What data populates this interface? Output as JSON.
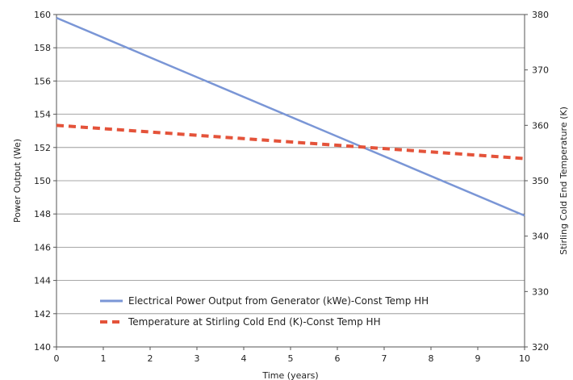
{
  "chart_data": {
    "type": "line",
    "title": "",
    "xlabel": "Time (years)",
    "ylabel": "Power Output (We)",
    "y2label": "Stirling Cold End Temperature (K)",
    "xlim": [
      0,
      10
    ],
    "ylim": [
      140,
      160
    ],
    "y2lim": [
      320,
      380
    ],
    "x_ticks": [
      "0",
      "1",
      "2",
      "3",
      "4",
      "5",
      "6",
      "7",
      "8",
      "9",
      "10"
    ],
    "y_ticks": [
      "140",
      "142",
      "144",
      "146",
      "148",
      "150",
      "152",
      "154",
      "156",
      "158",
      "160"
    ],
    "y2_ticks": [
      "320",
      "330",
      "340",
      "350",
      "360",
      "370",
      "380"
    ],
    "grid": true,
    "legend_position": "bottom-left",
    "series": [
      {
        "name": "Electrical Power Output from Generator (kWe)-Const Temp HH",
        "axis": "left",
        "style": "solid",
        "color": "#7a96d6",
        "x": [
          0,
          10
        ],
        "y": [
          159.8,
          147.9
        ]
      },
      {
        "name": "Temperature at Stirling Cold End (K)-Const Temp HH",
        "axis": "right",
        "style": "dashed",
        "color": "#e4533a",
        "x": [
          0,
          10
        ],
        "y": [
          360.0,
          354.0
        ]
      }
    ]
  }
}
